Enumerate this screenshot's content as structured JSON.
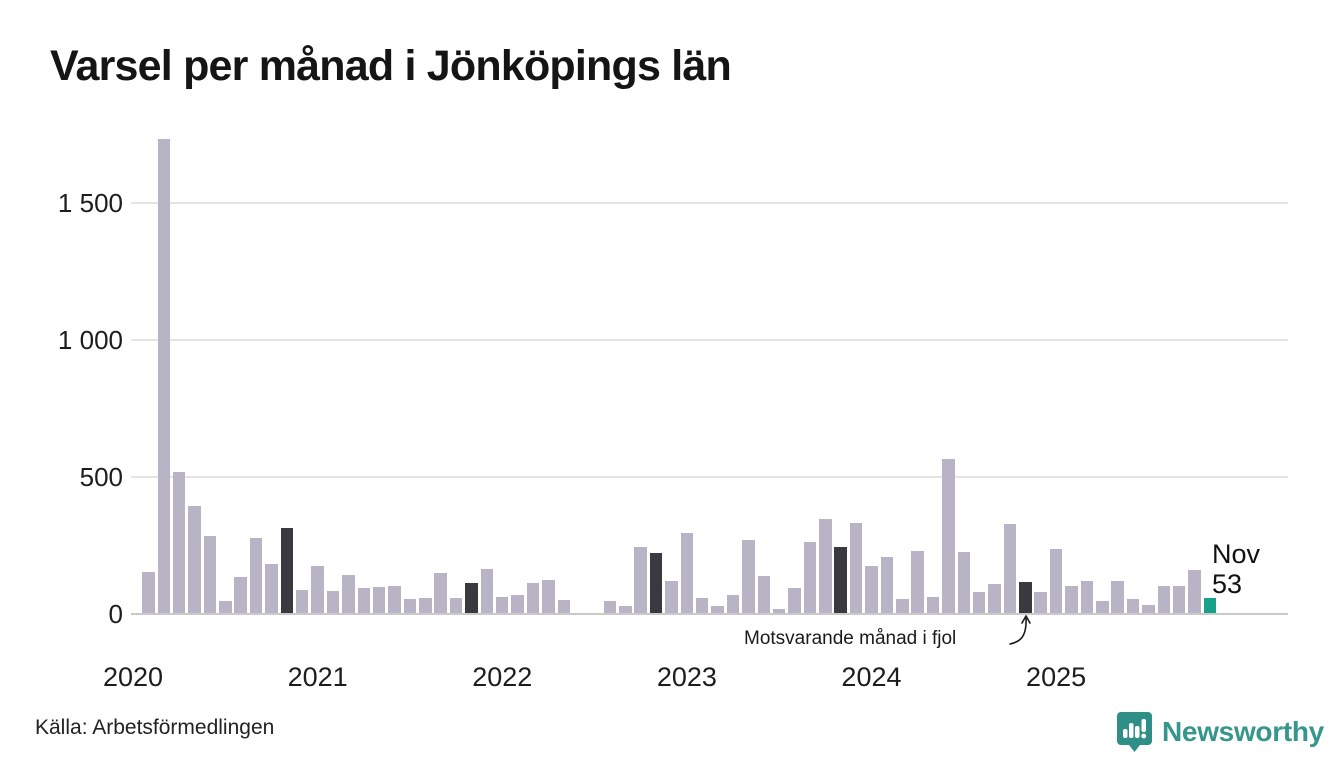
{
  "title": "Varsel per månad i Jönköpings län",
  "source": "Källa: Arbetsförmedlingen",
  "logo": {
    "text": "Newsworthy"
  },
  "annotations": {
    "fjol_label": "Motsvarande månad i fjol",
    "current_month_label": "Nov",
    "current_value_label": "53"
  },
  "colors": {
    "bar": "#b8b3c5",
    "bar_last_year": "#3a393f",
    "bar_current": "#17a08a",
    "gridline": "#e4e4e4",
    "axis_line": "#c9c9c9",
    "text": "#1d1d1d",
    "logo": "#2f8e85"
  },
  "chart_data": {
    "type": "bar",
    "title": "Varsel per månad i Jönköpings län",
    "xlabel": "",
    "ylabel": "",
    "ylim": [
      0,
      1750
    ],
    "grid": "horizontal",
    "y_axis": {
      "ticks": [
        {
          "value": 0,
          "label": "0"
        },
        {
          "value": 500,
          "label": "500"
        },
        {
          "value": 1000,
          "label": "1 000"
        },
        {
          "value": 1500,
          "label": "1 500"
        }
      ]
    },
    "x_axis": {
      "ticks": [
        {
          "month": "2020-01",
          "label": "2020"
        },
        {
          "month": "2021-01",
          "label": "2021"
        },
        {
          "month": "2022-01",
          "label": "2022"
        },
        {
          "month": "2023-01",
          "label": "2023"
        },
        {
          "month": "2024-01",
          "label": "2024"
        },
        {
          "month": "2025-01",
          "label": "2025"
        }
      ]
    },
    "series_notes": {
      "last_year_role": "Motsvarande månad i fjol (November föregående år, mörka staplar)",
      "current_role": "Nov 2025 = 53 (grön stapel)"
    },
    "months": [
      {
        "month": "2020-02",
        "value": 150,
        "role": "normal"
      },
      {
        "month": "2020-03",
        "value": 1730,
        "role": "normal"
      },
      {
        "month": "2020-04",
        "value": 515,
        "role": "normal"
      },
      {
        "month": "2020-05",
        "value": 390,
        "role": "normal"
      },
      {
        "month": "2020-06",
        "value": 280,
        "role": "normal"
      },
      {
        "month": "2020-07",
        "value": 45,
        "role": "normal"
      },
      {
        "month": "2020-08",
        "value": 130,
        "role": "normal"
      },
      {
        "month": "2020-09",
        "value": 275,
        "role": "normal"
      },
      {
        "month": "2020-10",
        "value": 180,
        "role": "normal"
      },
      {
        "month": "2020-11",
        "value": 310,
        "role": "last_year"
      },
      {
        "month": "2020-12",
        "value": 85,
        "role": "normal"
      },
      {
        "month": "2021-01",
        "value": 170,
        "role": "normal"
      },
      {
        "month": "2021-02",
        "value": 80,
        "role": "normal"
      },
      {
        "month": "2021-03",
        "value": 140,
        "role": "normal"
      },
      {
        "month": "2021-04",
        "value": 90,
        "role": "normal"
      },
      {
        "month": "2021-05",
        "value": 95,
        "role": "normal"
      },
      {
        "month": "2021-06",
        "value": 100,
        "role": "normal"
      },
      {
        "month": "2021-07",
        "value": 50,
        "role": "normal"
      },
      {
        "month": "2021-08",
        "value": 55,
        "role": "normal"
      },
      {
        "month": "2021-09",
        "value": 145,
        "role": "normal"
      },
      {
        "month": "2021-10",
        "value": 55,
        "role": "normal"
      },
      {
        "month": "2021-11",
        "value": 110,
        "role": "last_year"
      },
      {
        "month": "2021-12",
        "value": 160,
        "role": "normal"
      },
      {
        "month": "2022-01",
        "value": 60,
        "role": "normal"
      },
      {
        "month": "2022-02",
        "value": 65,
        "role": "normal"
      },
      {
        "month": "2022-03",
        "value": 110,
        "role": "normal"
      },
      {
        "month": "2022-04",
        "value": 120,
        "role": "normal"
      },
      {
        "month": "2022-05",
        "value": 47,
        "role": "normal"
      },
      {
        "month": "2022-06",
        "value": 0,
        "role": "normal"
      },
      {
        "month": "2022-07",
        "value": 0,
        "role": "normal"
      },
      {
        "month": "2022-08",
        "value": 45,
        "role": "normal"
      },
      {
        "month": "2022-09",
        "value": 25,
        "role": "normal"
      },
      {
        "month": "2022-10",
        "value": 240,
        "role": "normal"
      },
      {
        "month": "2022-11",
        "value": 220,
        "role": "last_year"
      },
      {
        "month": "2022-12",
        "value": 118,
        "role": "normal"
      },
      {
        "month": "2023-01",
        "value": 290,
        "role": "normal"
      },
      {
        "month": "2023-02",
        "value": 55,
        "role": "normal"
      },
      {
        "month": "2023-03",
        "value": 25,
        "role": "normal"
      },
      {
        "month": "2023-04",
        "value": 65,
        "role": "normal"
      },
      {
        "month": "2023-05",
        "value": 267,
        "role": "normal"
      },
      {
        "month": "2023-06",
        "value": 135,
        "role": "normal"
      },
      {
        "month": "2023-07",
        "value": 15,
        "role": "normal"
      },
      {
        "month": "2023-08",
        "value": 90,
        "role": "normal"
      },
      {
        "month": "2023-09",
        "value": 258,
        "role": "normal"
      },
      {
        "month": "2023-10",
        "value": 343,
        "role": "normal"
      },
      {
        "month": "2023-11",
        "value": 240,
        "role": "last_year"
      },
      {
        "month": "2023-12",
        "value": 328,
        "role": "normal"
      },
      {
        "month": "2024-01",
        "value": 170,
        "role": "normal"
      },
      {
        "month": "2024-02",
        "value": 205,
        "role": "normal"
      },
      {
        "month": "2024-03",
        "value": 50,
        "role": "normal"
      },
      {
        "month": "2024-04",
        "value": 225,
        "role": "normal"
      },
      {
        "month": "2024-05",
        "value": 58,
        "role": "normal"
      },
      {
        "month": "2024-06",
        "value": 560,
        "role": "normal"
      },
      {
        "month": "2024-07",
        "value": 222,
        "role": "normal"
      },
      {
        "month": "2024-08",
        "value": 75,
        "role": "normal"
      },
      {
        "month": "2024-09",
        "value": 105,
        "role": "normal"
      },
      {
        "month": "2024-10",
        "value": 325,
        "role": "normal"
      },
      {
        "month": "2024-11",
        "value": 114,
        "role": "last_year"
      },
      {
        "month": "2024-12",
        "value": 78,
        "role": "normal"
      },
      {
        "month": "2025-01",
        "value": 235,
        "role": "normal"
      },
      {
        "month": "2025-02",
        "value": 100,
        "role": "normal"
      },
      {
        "month": "2025-03",
        "value": 118,
        "role": "normal"
      },
      {
        "month": "2025-04",
        "value": 42,
        "role": "normal"
      },
      {
        "month": "2025-05",
        "value": 116,
        "role": "normal"
      },
      {
        "month": "2025-06",
        "value": 50,
        "role": "normal"
      },
      {
        "month": "2025-07",
        "value": 28,
        "role": "normal"
      },
      {
        "month": "2025-08",
        "value": 98,
        "role": "normal"
      },
      {
        "month": "2025-09",
        "value": 98,
        "role": "normal"
      },
      {
        "month": "2025-10",
        "value": 156,
        "role": "normal"
      },
      {
        "month": "2025-11",
        "value": 53,
        "role": "current"
      }
    ]
  }
}
